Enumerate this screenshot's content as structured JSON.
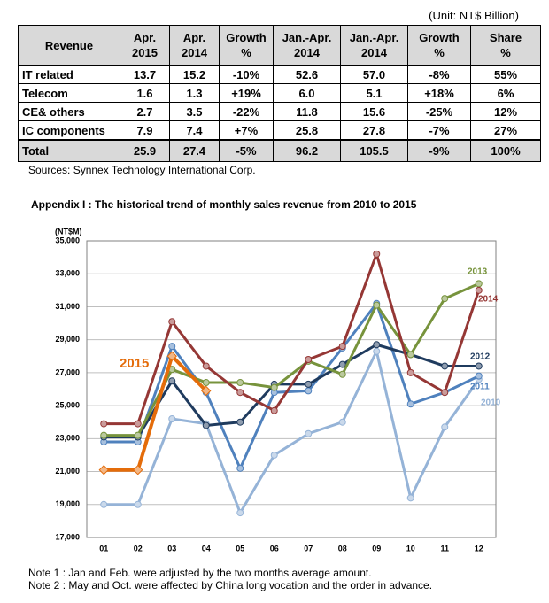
{
  "unit": "(Unit: NT$ Billion)",
  "table": {
    "headers": [
      [
        "Revenue"
      ],
      [
        "Apr.",
        "2015"
      ],
      [
        "Apr.",
        "2014"
      ],
      [
        "Growth",
        "%"
      ],
      [
        "Jan.-Apr.",
        "2014"
      ],
      [
        "Jan.-Apr.",
        "2014"
      ],
      [
        "Growth",
        "%"
      ],
      [
        "Share",
        "%"
      ]
    ],
    "rows": [
      [
        "IT related",
        "13.7",
        "15.2",
        "-10%",
        "52.6",
        "57.0",
        "-8%",
        "55%"
      ],
      [
        "Telecom",
        "1.6",
        "1.3",
        "+19%",
        "6.0",
        "5.1",
        "+18%",
        "6%"
      ],
      [
        "CE& others",
        "2.7",
        "3.5",
        "-22%",
        "11.8",
        "15.6",
        "-25%",
        "12%"
      ],
      [
        "IC components",
        "7.9",
        "7.4",
        "+7%",
        "25.8",
        "27.8",
        "-7%",
        "27%"
      ]
    ],
    "total": [
      "Total",
      "25.9",
      "27.4",
      "-5%",
      "96.2",
      "105.5",
      "-9%",
      "100%"
    ]
  },
  "source": "Sources: Synnex Technology International Corp.",
  "chart_data": {
    "type": "line",
    "title": "Appendix I : The historical trend of monthly sales revenue from 2010 to 2015",
    "y_label": "(NT$M)",
    "categories": [
      "01",
      "02",
      "03",
      "04",
      "05",
      "06",
      "07",
      "08",
      "09",
      "10",
      "11",
      "12"
    ],
    "series": [
      {
        "name": "2010",
        "color": "#95b3d7",
        "values": [
          19000,
          19000,
          24200,
          23900,
          18500,
          22000,
          23300,
          24000,
          28300,
          19400,
          23700,
          26600
        ]
      },
      {
        "name": "2011",
        "color": "#4f81bd",
        "values": [
          22800,
          22800,
          28600,
          25800,
          21200,
          25800,
          25900,
          28500,
          31200,
          25100,
          25800,
          26800
        ]
      },
      {
        "name": "2012",
        "color": "#1f3b5e",
        "values": [
          23100,
          23100,
          26500,
          23800,
          24000,
          26300,
          26300,
          27500,
          28700,
          28100,
          27400,
          27400
        ]
      },
      {
        "name": "2013",
        "color": "#77933c",
        "values": [
          23200,
          23200,
          27200,
          26400,
          26400,
          26100,
          27700,
          26900,
          31100,
          28100,
          31500,
          32400
        ]
      },
      {
        "name": "2014",
        "color": "#953735",
        "values": [
          23900,
          23900,
          30100,
          27400,
          25800,
          24700,
          27800,
          28600,
          34200,
          27000,
          25800,
          32000
        ]
      },
      {
        "name": "2015",
        "color": "#e46c0a",
        "values": [
          21100,
          21100,
          28000,
          25900,
          null,
          null,
          null,
          null,
          null,
          null,
          null,
          null
        ]
      }
    ],
    "ylim": [
      17000,
      35000
    ],
    "yticks": [
      {
        "value": 17000,
        "label": "17,000"
      },
      {
        "value": 19000,
        "label": "19,000"
      },
      {
        "value": 21000,
        "label": "21,000"
      },
      {
        "value": 23000,
        "label": "23,000"
      },
      {
        "value": 25000,
        "label": "25,000"
      },
      {
        "value": 27000,
        "label": "27,000"
      },
      {
        "value": 29000,
        "label": "29,000"
      },
      {
        "value": 31000,
        "label": "31,000"
      },
      {
        "value": 33000,
        "label": "33,000"
      },
      {
        "value": 35000,
        "label": "35,000"
      }
    ],
    "grid": true
  },
  "notes": [
    "Note 1 : Jan and Feb. were adjusted by the two months average amount.",
    "Note 2 : May and Oct. were affected by China long vocation and the order in advance."
  ]
}
